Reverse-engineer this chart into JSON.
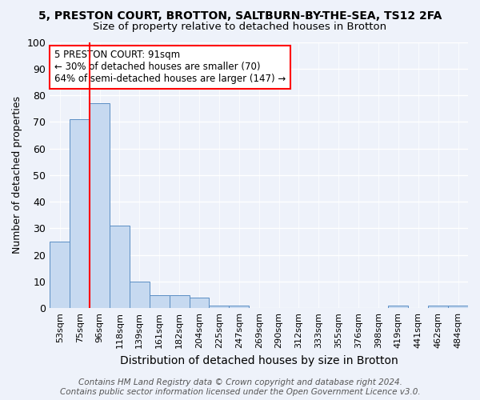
{
  "title1": "5, PRESTON COURT, BROTTON, SALTBURN-BY-THE-SEA, TS12 2FA",
  "title2": "Size of property relative to detached houses in Brotton",
  "xlabel": "Distribution of detached houses by size in Brotton",
  "ylabel": "Number of detached properties",
  "bin_labels": [
    "53sqm",
    "75sqm",
    "96sqm",
    "118sqm",
    "139sqm",
    "161sqm",
    "182sqm",
    "204sqm",
    "225sqm",
    "247sqm",
    "269sqm",
    "290sqm",
    "312sqm",
    "333sqm",
    "355sqm",
    "376sqm",
    "398sqm",
    "419sqm",
    "441sqm",
    "462sqm",
    "484sqm"
  ],
  "bar_heights": [
    25,
    71,
    77,
    31,
    10,
    5,
    5,
    4,
    1,
    1,
    0,
    0,
    0,
    0,
    0,
    0,
    0,
    1,
    0,
    1,
    1
  ],
  "bar_color": "#c6d9f0",
  "bar_edge_color": "#5b8ec4",
  "annotation_line1": "5 PRESTON COURT: 91sqm",
  "annotation_line2": "← 30% of detached houses are smaller (70)",
  "annotation_line3": "64% of semi-detached houses are larger (147) →",
  "ylim": [
    0,
    100
  ],
  "yticks": [
    0,
    10,
    20,
    30,
    40,
    50,
    60,
    70,
    80,
    90,
    100
  ],
  "footer1": "Contains HM Land Registry data © Crown copyright and database right 2024.",
  "footer2": "Contains public sector information licensed under the Open Government Licence v3.0.",
  "bg_color": "#eef2fa",
  "grid_color": "#d0d8e8",
  "title1_fontsize": 10,
  "title2_fontsize": 9.5,
  "xlabel_fontsize": 10,
  "ylabel_fontsize": 9,
  "footer_fontsize": 7.5,
  "annotation_fontsize": 8.5,
  "tick_fontsize": 8
}
